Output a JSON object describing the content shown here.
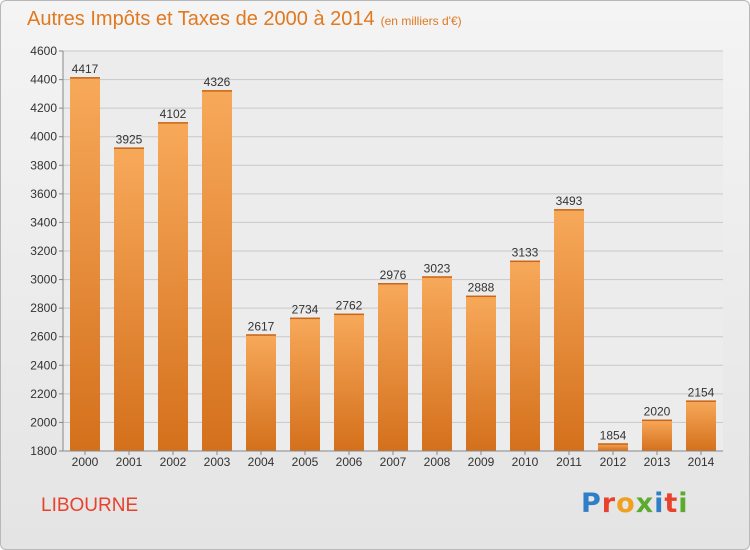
{
  "header": {
    "title": "Autres Impôts et Taxes de 2000 à 2014",
    "subtitle": "(en milliers d'€)"
  },
  "footer": {
    "town": "LIBOURNE",
    "logo_letters": [
      "P",
      "r",
      "o",
      "x",
      "i",
      "t",
      "i"
    ],
    "logo_colors": [
      "#2e7ec8",
      "#e8412c",
      "#f0a020",
      "#5aab2e",
      "#2e7ec8",
      "#e8412c",
      "#5aab2e"
    ]
  },
  "colors": {
    "bar_top": "#f7a95a",
    "bar_bottom": "#d4701c",
    "grid": "#c8c8c8",
    "axis": "#888888",
    "text": "#333333",
    "title": "#e07920",
    "town": "#e8412c"
  },
  "chart_data": {
    "type": "bar",
    "categories": [
      "2000",
      "2001",
      "2002",
      "2003",
      "2004",
      "2005",
      "2006",
      "2007",
      "2008",
      "2009",
      "2010",
      "2011",
      "2012",
      "2013",
      "2014"
    ],
    "values": [
      4417,
      3925,
      4102,
      4326,
      2617,
      2734,
      2762,
      2976,
      3023,
      2888,
      3133,
      3493,
      1854,
      2020,
      2154
    ],
    "ylim": [
      1800,
      4600
    ],
    "yticks": [
      1800,
      2000,
      2200,
      2400,
      2600,
      2800,
      3000,
      3200,
      3400,
      3600,
      3800,
      4000,
      4200,
      4400,
      4600
    ],
    "grid": true,
    "data_labels": true
  }
}
